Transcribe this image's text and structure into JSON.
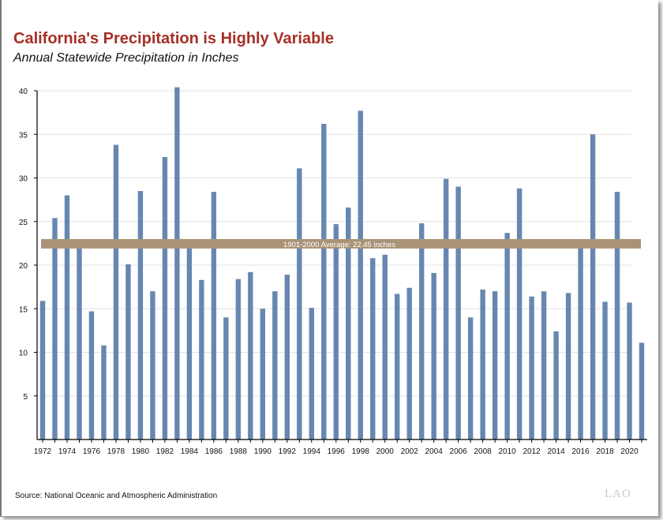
{
  "header": {
    "title": "California's Precipitation is Highly Variable",
    "subtitle": "Annual Statewide Precipitation in Inches"
  },
  "footer": {
    "source": "Source: National Oceanic and Atmospheric Administration",
    "logo": "LAO"
  },
  "chart_data": {
    "type": "bar",
    "title": "California's Precipitation is Highly Variable",
    "subtitle": "Annual Statewide Precipitation in Inches",
    "categories": [
      1972,
      1973,
      1974,
      1975,
      1976,
      1977,
      1978,
      1979,
      1980,
      1981,
      1982,
      1983,
      1984,
      1985,
      1986,
      1987,
      1988,
      1989,
      1990,
      1991,
      1992,
      1993,
      1994,
      1995,
      1996,
      1997,
      1998,
      1999,
      2000,
      2001,
      2002,
      2003,
      2004,
      2005,
      2006,
      2007,
      2008,
      2009,
      2010,
      2011,
      2012,
      2013,
      2014,
      2015,
      2016,
      2017,
      2018,
      2019,
      2020,
      2021
    ],
    "values": [
      15.9,
      25.4,
      28.0,
      22.2,
      14.7,
      10.8,
      33.8,
      20.1,
      28.5,
      17.0,
      32.4,
      40.4,
      22.3,
      18.3,
      28.4,
      14.0,
      18.4,
      19.2,
      15.0,
      17.0,
      18.9,
      31.1,
      15.1,
      36.2,
      24.7,
      26.6,
      37.7,
      20.8,
      21.2,
      16.7,
      17.4,
      24.8,
      19.1,
      29.9,
      29.0,
      14.0,
      17.2,
      17.0,
      23.7,
      28.8,
      16.4,
      17.0,
      12.4,
      16.8,
      22.0,
      35.0,
      15.8,
      28.4,
      15.7,
      11.1
    ],
    "x_tick_labels": [
      "1972",
      "1974",
      "1976",
      "1978",
      "1980",
      "1982",
      "1984",
      "1986",
      "1988",
      "1990",
      "1992",
      "1994",
      "1996",
      "1998",
      "2000",
      "2002",
      "2004",
      "2006",
      "2008",
      "2010",
      "2012",
      "2014",
      "2016",
      "2018",
      "2020"
    ],
    "y_ticks": [
      5,
      10,
      15,
      20,
      25,
      30,
      35,
      40
    ],
    "ylim": [
      0,
      41
    ],
    "grid": true,
    "reference_line": {
      "value": 22.45,
      "label": "1901-2000 Average: 22.45 inches",
      "color": "#ab9378"
    },
    "bar_color": "#6787b0",
    "xlabel": "",
    "ylabel": ""
  }
}
